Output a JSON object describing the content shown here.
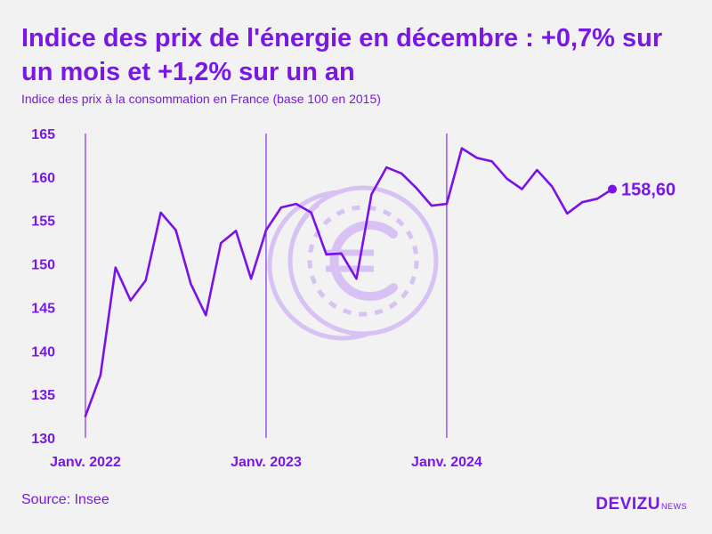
{
  "title": "Indice des prix de l'énergie en décembre : +0,7% sur un mois et +1,2% sur un an",
  "subtitle": "Indice des prix à la consommation en France (base 100 en 2015)",
  "source": "Source: Insee",
  "logo": {
    "main": "DEVIZU",
    "sub": "NEWS"
  },
  "colors": {
    "accent": "#7a17e6",
    "line": "#7a12e8",
    "background": "#f2f2f2",
    "watermark": "#d8c2f4"
  },
  "watermark_icon": "euro-coin-icon",
  "chart_data": {
    "type": "line",
    "title": "Indice des prix de l'énergie en décembre : +0,7% sur un mois et +1,2% sur un an",
    "ylabel": "Indice des prix à la consommation en France (base 100 en 2015)",
    "ylim": [
      130,
      165
    ],
    "yticks": [
      130,
      135,
      140,
      145,
      150,
      155,
      160,
      165
    ],
    "xticks": [
      {
        "index": 0,
        "label": "Janv. 2022"
      },
      {
        "index": 12,
        "label": "Janv. 2023"
      },
      {
        "index": 24,
        "label": "Janv. 2024"
      }
    ],
    "series": [
      {
        "name": "Indice des prix de l'énergie",
        "values": [
          132.5,
          137.2,
          149.6,
          145.8,
          148.1,
          155.9,
          153.9,
          147.7,
          144.1,
          152.4,
          153.8,
          148.3,
          153.9,
          156.5,
          156.9,
          155.9,
          151.1,
          151.2,
          148.3,
          158.0,
          161.1,
          160.4,
          158.7,
          156.7,
          156.9,
          163.3,
          162.2,
          161.8,
          159.8,
          158.6,
          160.8,
          158.9,
          155.8,
          157.1,
          157.5,
          158.6
        ]
      }
    ],
    "end_label": "158,60"
  }
}
